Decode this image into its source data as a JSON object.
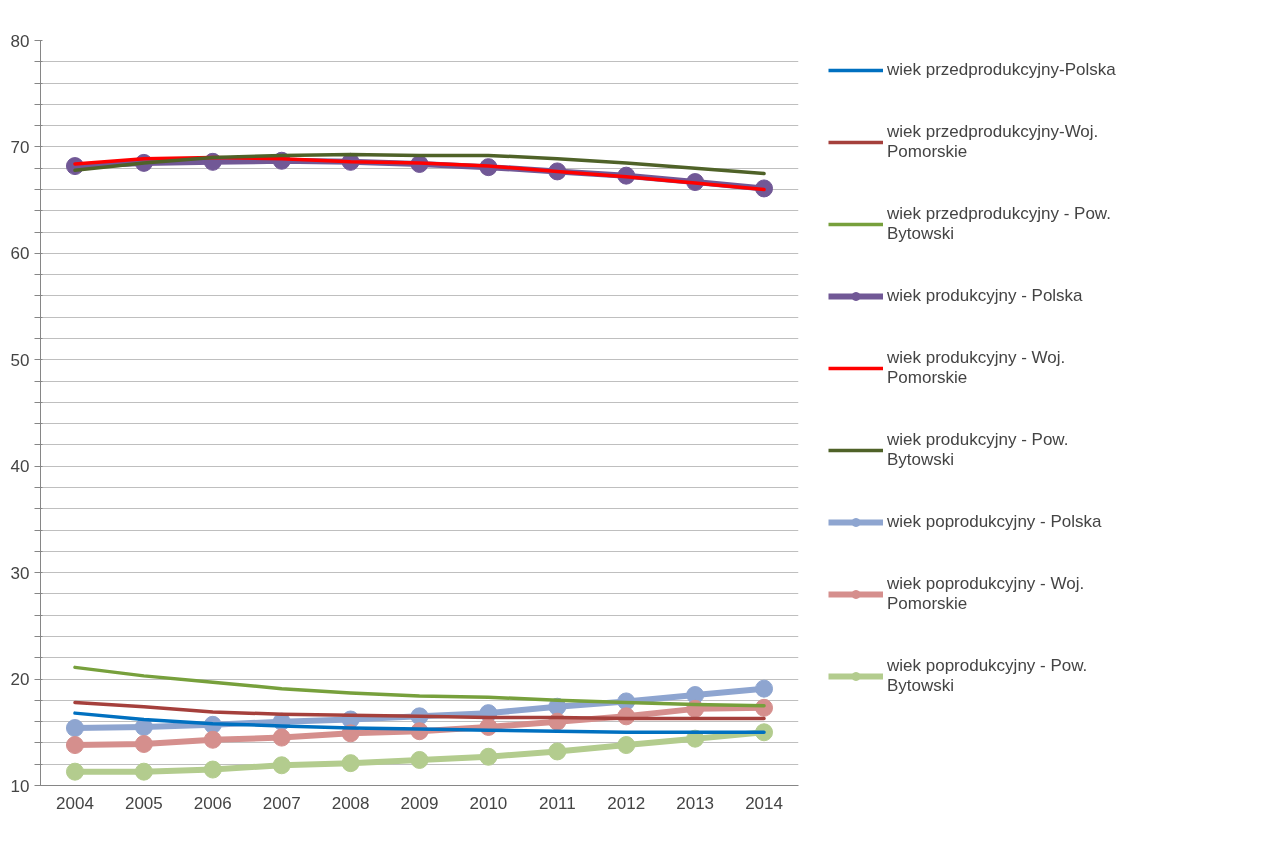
{
  "chart_data": {
    "type": "line",
    "categories": [
      "2004",
      "2005",
      "2006",
      "2007",
      "2008",
      "2009",
      "2010",
      "2011",
      "2012",
      "2013",
      "2014"
    ],
    "ylim": [
      10,
      80
    ],
    "yticks": [
      10,
      {
        "value": 12,
        "label": null
      },
      {
        "value": 14,
        "label": null
      },
      {
        "value": 16,
        "label": null
      },
      {
        "value": 18,
        "label": null
      },
      20,
      {
        "value": 22,
        "label": null
      },
      {
        "value": 24,
        "label": null
      },
      {
        "value": 26,
        "label": null
      },
      {
        "value": 28,
        "label": null
      },
      30,
      {
        "value": 32,
        "label": null
      },
      {
        "value": 34,
        "label": null
      },
      {
        "value": 36,
        "label": null
      },
      {
        "value": 38,
        "label": null
      },
      40,
      {
        "value": 42,
        "label": null
      },
      {
        "value": 44,
        "label": null
      },
      {
        "value": 46,
        "label": null
      },
      {
        "value": 48,
        "label": null
      },
      50,
      {
        "value": 52,
        "label": null
      },
      {
        "value": 54,
        "label": null
      },
      {
        "value": 56,
        "label": null
      },
      {
        "value": 58,
        "label": null
      },
      60,
      {
        "value": 62,
        "label": null
      },
      {
        "value": 64,
        "label": null
      },
      {
        "value": 66,
        "label": null
      },
      {
        "value": 68,
        "label": null
      },
      70,
      {
        "value": 72,
        "label": null
      },
      {
        "value": 74,
        "label": null
      },
      {
        "value": 76,
        "label": null
      },
      {
        "value": 78,
        "label": null
      },
      80
    ],
    "grid": "y",
    "legend": "right",
    "series": [
      {
        "name": "wiek przedprodukcyjny-Polska",
        "color": "#0070c0",
        "marker": "none",
        "values": [
          16.8,
          16.2,
          15.8,
          15.6,
          15.4,
          15.3,
          15.2,
          15.1,
          15.0,
          15.0,
          15.0
        ]
      },
      {
        "name": "wiek przedprodukcyjny-Woj. Pomorskie",
        "color": "#a5403c",
        "marker": "none",
        "values": [
          17.8,
          17.4,
          16.9,
          16.7,
          16.6,
          16.5,
          16.4,
          16.4,
          16.3,
          16.3,
          16.3
        ]
      },
      {
        "name": "wiek przedprodukcyjny - Pow. Bytowski",
        "color": "#77a03c",
        "marker": "none",
        "values": [
          21.1,
          20.3,
          19.7,
          19.1,
          18.7,
          18.4,
          18.3,
          18.0,
          17.8,
          17.6,
          17.5
        ]
      },
      {
        "name": "wiek produkcyjny - Polska",
        "color": "#715896",
        "marker": "circle",
        "values": [
          68.2,
          68.5,
          68.6,
          68.7,
          68.6,
          68.4,
          68.1,
          67.7,
          67.3,
          66.7,
          66.1
        ]
      },
      {
        "name": "wiek produkcyjny - Woj. Pomorskie",
        "color": "#ff0000",
        "marker": "none",
        "values": [
          68.4,
          68.9,
          69.0,
          68.9,
          68.6,
          68.5,
          68.2,
          67.7,
          67.2,
          66.6,
          66.0
        ]
      },
      {
        "name": "wiek produkcyjny - Pow. Bytowski",
        "color": "#4f6228",
        "marker": "none",
        "values": [
          67.8,
          68.5,
          69.0,
          69.2,
          69.3,
          69.2,
          69.2,
          68.9,
          68.5,
          68.0,
          67.5
        ]
      },
      {
        "name": "wiek poprodukcyjny - Polska",
        "color": "#8ea5d0",
        "marker": "circle",
        "values": [
          15.4,
          15.5,
          15.7,
          16.0,
          16.2,
          16.5,
          16.8,
          17.4,
          17.9,
          18.5,
          19.1
        ]
      },
      {
        "name": "wiek poprodukcyjny - Woj. Pomorskie",
        "color": "#d58f8d",
        "marker": "circle",
        "values": [
          13.8,
          13.9,
          14.3,
          14.5,
          14.9,
          15.1,
          15.5,
          16.0,
          16.5,
          17.2,
          17.3
        ]
      },
      {
        "name": "wiek poprodukcyjny - Pow. Bytowski",
        "color": "#b3cc8e",
        "marker": "circle",
        "values": [
          11.3,
          11.3,
          11.5,
          11.9,
          12.1,
          12.4,
          12.7,
          13.2,
          13.8,
          14.4,
          15.0
        ]
      }
    ]
  }
}
